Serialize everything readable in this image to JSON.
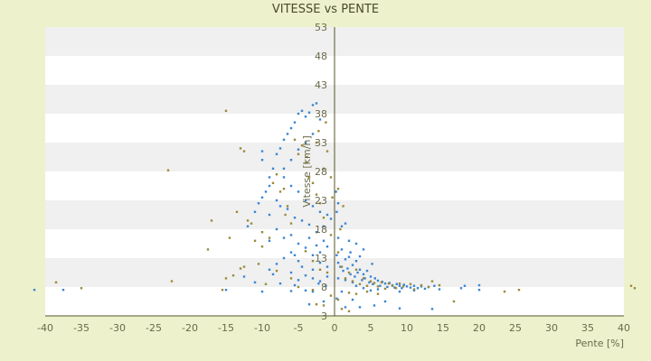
{
  "chart_data": {
    "type": "scatter",
    "title": "VITESSE vs PENTE",
    "xlabel": "Pente [%]",
    "ylabel": "Vitesse [km/h]",
    "xlim": [
      -40,
      40
    ],
    "ylim": [
      3,
      53
    ],
    "x_ticks": [
      -40,
      -35,
      -30,
      -25,
      -20,
      -15,
      -10,
      -5,
      0,
      5,
      10,
      15,
      20,
      25,
      30,
      35,
      40
    ],
    "y_ticks": [
      3,
      8,
      13,
      18,
      23,
      28,
      33,
      38,
      43,
      48,
      53
    ],
    "colors": {
      "background": "#eef2cc",
      "band_light": "#ffffff",
      "band_dark": "#f0f0f0",
      "series_blue": "#3a86d4",
      "series_olive": "#9a8a3a",
      "axis": "#55552a"
    },
    "series": [
      {
        "color": "#3a86d4",
        "points": [
          [
            -41.5,
            7.5
          ],
          [
            -37.5,
            7.5
          ],
          [
            -15,
            7.5
          ],
          [
            -11,
            8.8
          ],
          [
            -10,
            7.2
          ],
          [
            -6,
            7.3
          ],
          [
            -4,
            7.4
          ],
          [
            -3,
            7.2
          ],
          [
            -5,
            9.2
          ],
          [
            -12,
            18.5
          ],
          [
            -11,
            21
          ],
          [
            -10.5,
            22.5
          ],
          [
            -10,
            23.5
          ],
          [
            -9.5,
            24.5
          ],
          [
            -9,
            25.5
          ],
          [
            -9,
            27
          ],
          [
            -8.5,
            28.5
          ],
          [
            -10,
            30
          ],
          [
            -10,
            31.5
          ],
          [
            -8,
            31
          ],
          [
            -7.5,
            32
          ],
          [
            -7,
            33.5
          ],
          [
            -6.5,
            34.5
          ],
          [
            -6,
            35.5
          ],
          [
            -5.5,
            36.5
          ],
          [
            -5,
            38
          ],
          [
            -4.5,
            38.5
          ],
          [
            -4,
            37.5
          ],
          [
            -3.5,
            38.2
          ],
          [
            -3,
            39.5
          ],
          [
            -2.5,
            39.8
          ],
          [
            -2,
            37
          ],
          [
            -3,
            34.5
          ],
          [
            -4,
            33
          ],
          [
            -5,
            31.8
          ],
          [
            -6,
            30
          ],
          [
            -7,
            28.5
          ],
          [
            -7,
            27
          ],
          [
            -6,
            25.5
          ],
          [
            -5,
            24.5
          ],
          [
            -4,
            23
          ],
          [
            -3,
            22
          ],
          [
            -2,
            21
          ],
          [
            -1,
            20.5
          ],
          [
            -0.5,
            19.8
          ],
          [
            -1.5,
            18.5
          ],
          [
            -2.5,
            17.5
          ],
          [
            -3.5,
            18.8
          ],
          [
            -4.5,
            19.5
          ],
          [
            -5.5,
            20
          ],
          [
            -6.5,
            21.5
          ],
          [
            -7.5,
            22
          ],
          [
            -8,
            23
          ],
          [
            -9,
            20.5
          ],
          [
            -8,
            18
          ],
          [
            -7,
            16.5
          ],
          [
            -6,
            17
          ],
          [
            -5,
            15.5
          ],
          [
            -4,
            14.8
          ],
          [
            -3,
            13.5
          ],
          [
            -2,
            12.2
          ],
          [
            -1,
            11.5
          ],
          [
            -1.5,
            16
          ],
          [
            -2.5,
            15.2
          ],
          [
            -3.5,
            16.5
          ],
          [
            -6,
            14
          ],
          [
            -7,
            13
          ],
          [
            -8,
            12
          ],
          [
            -9,
            11
          ],
          [
            -6,
            10.5
          ],
          [
            -4,
            10
          ],
          [
            -3,
            9.5
          ],
          [
            -2,
            9
          ],
          [
            -1,
            9.8
          ],
          [
            -12.5,
            9.8
          ],
          [
            -7.5,
            8.6
          ],
          [
            -5.5,
            8.3
          ],
          [
            -8.5,
            10.2
          ],
          [
            -2.2,
            8.6
          ],
          [
            -1.2,
            8.2
          ],
          [
            0.3,
            13.5
          ],
          [
            0.5,
            12.2
          ],
          [
            0.8,
            11.5
          ],
          [
            1,
            14.5
          ],
          [
            1.2,
            10.8
          ],
          [
            1.5,
            12.8
          ],
          [
            1.8,
            11.2
          ],
          [
            2,
            13.2
          ],
          [
            2.2,
            10.2
          ],
          [
            2.5,
            11.8
          ],
          [
            2.8,
            9.8
          ],
          [
            3,
            12.5
          ],
          [
            3.2,
            10.5
          ],
          [
            3.5,
            11
          ],
          [
            3.8,
            9.2
          ],
          [
            4,
            10.2
          ],
          [
            4.2,
            9.5
          ],
          [
            4.5,
            10.8
          ],
          [
            4.8,
            8.8
          ],
          [
            5,
            9.8
          ],
          [
            5.3,
            8.5
          ],
          [
            5.6,
            9.5
          ],
          [
            6,
            9.1
          ],
          [
            6.3,
            8.2
          ],
          [
            6.6,
            8.9
          ],
          [
            7,
            8.6
          ],
          [
            7.3,
            8
          ],
          [
            7.6,
            8.7
          ],
          [
            8,
            8.3
          ],
          [
            8.3,
            7.9
          ],
          [
            8.6,
            8.5
          ],
          [
            9,
            8.2
          ],
          [
            9.3,
            7.8
          ],
          [
            9.6,
            8.4
          ],
          [
            10,
            8.1
          ],
          [
            10.5,
            7.9
          ],
          [
            11,
            8.2
          ],
          [
            11.5,
            7.8
          ],
          [
            12,
            8.1
          ],
          [
            12.5,
            7.7
          ],
          [
            13,
            8
          ],
          [
            13.8,
            8.2
          ],
          [
            14.5,
            7.6
          ],
          [
            17.5,
            7.8
          ],
          [
            18,
            8.2
          ],
          [
            20,
            7.5
          ],
          [
            20,
            8.3
          ],
          [
            0.5,
            16.5
          ],
          [
            1,
            18.5
          ],
          [
            1.5,
            19
          ],
          [
            0.3,
            21
          ],
          [
            0.5,
            22.5
          ],
          [
            0.2,
            24.5
          ],
          [
            2,
            16
          ],
          [
            3,
            15.5
          ],
          [
            4,
            14.5
          ],
          [
            0.5,
            9.5
          ],
          [
            1.5,
            9.2
          ],
          [
            2.5,
            8.8
          ],
          [
            3,
            8.2
          ],
          [
            4,
            7.8
          ],
          [
            5,
            7.4
          ],
          [
            6,
            7.6
          ],
          [
            9,
            7.2
          ],
          [
            11,
            7.4
          ],
          [
            1,
            7.2
          ],
          [
            0.3,
            6
          ],
          [
            -3.5,
            5
          ],
          [
            -1.5,
            5.5
          ],
          [
            1.5,
            4.5
          ],
          [
            2.5,
            5.8
          ],
          [
            3.5,
            4.5
          ],
          [
            5.5,
            4.8
          ],
          [
            7,
            5.5
          ],
          [
            9,
            4.3
          ],
          [
            13.5,
            4.2
          ],
          [
            -4.5,
            11.5
          ],
          [
            -5,
            12.5
          ],
          [
            -5.5,
            13.5
          ],
          [
            -2,
            14
          ],
          [
            -1,
            15
          ],
          [
            -3,
            11
          ],
          [
            2.2,
            14
          ],
          [
            3.5,
            13.3
          ],
          [
            5.2,
            12
          ],
          [
            -9,
            16
          ]
        ]
      },
      {
        "color": "#9a8a3a",
        "points": [
          [
            41.5,
            7.8
          ],
          [
            41,
            8.2
          ],
          [
            -38.5,
            8.8
          ],
          [
            -35,
            7.8
          ],
          [
            -23,
            28.2
          ],
          [
            -22.5,
            9
          ],
          [
            -17.5,
            14.5
          ],
          [
            -17,
            19.5
          ],
          [
            -15,
            38.5
          ],
          [
            -15.5,
            7.5
          ],
          [
            -15,
            9.5
          ],
          [
            -14.5,
            16.5
          ],
          [
            -13.5,
            21
          ],
          [
            -13,
            32
          ],
          [
            -12.5,
            31.5
          ],
          [
            -12,
            19.5
          ],
          [
            -11.5,
            19
          ],
          [
            -11,
            16
          ],
          [
            -10,
            15
          ],
          [
            -10,
            17.5
          ],
          [
            -10.5,
            12
          ],
          [
            -9,
            16.5
          ],
          [
            -8.5,
            26
          ],
          [
            -8,
            27.5
          ],
          [
            -7.5,
            24.5
          ],
          [
            -7,
            25
          ],
          [
            -6.5,
            22
          ],
          [
            -6,
            19
          ],
          [
            -5.5,
            33.5
          ],
          [
            -5,
            31
          ],
          [
            -4.5,
            32.5
          ],
          [
            -4,
            29.5
          ],
          [
            -3.5,
            27
          ],
          [
            -3,
            26
          ],
          [
            -2.5,
            24
          ],
          [
            -2,
            22.5
          ],
          [
            -1.5,
            28.5
          ],
          [
            -1,
            31.5
          ],
          [
            -0.5,
            27
          ],
          [
            -2.5,
            33
          ],
          [
            -1.5,
            20
          ],
          [
            -0.5,
            17
          ],
          [
            -4,
            14.2
          ],
          [
            -3,
            12.5
          ],
          [
            -2,
            11
          ],
          [
            -1,
            10.5
          ],
          [
            -6,
            9.5
          ],
          [
            -8,
            10.8
          ],
          [
            -13,
            11.2
          ],
          [
            -14,
            10
          ],
          [
            -12.5,
            11.5
          ],
          [
            -5,
            8
          ],
          [
            -3,
            7.5
          ],
          [
            -2.5,
            5
          ],
          [
            -1.5,
            4.8
          ],
          [
            -0.5,
            6.5
          ],
          [
            0.5,
            14
          ],
          [
            1,
            11.5
          ],
          [
            1.5,
            9.5
          ],
          [
            2,
            10.5
          ],
          [
            2.5,
            9
          ],
          [
            3,
            11
          ],
          [
            3.5,
            8.5
          ],
          [
            4,
            9.5
          ],
          [
            4.5,
            8.2
          ],
          [
            5,
            9
          ],
          [
            5.5,
            8.7
          ],
          [
            6,
            8.1
          ],
          [
            6.5,
            8.8
          ],
          [
            7,
            7.7
          ],
          [
            7.5,
            8.6
          ],
          [
            8,
            8.2
          ],
          [
            8.5,
            7.8
          ],
          [
            9,
            8.6
          ],
          [
            9.5,
            8.1
          ],
          [
            10.5,
            8.5
          ],
          [
            11,
            7.6
          ],
          [
            12,
            8.3
          ],
          [
            13,
            8
          ],
          [
            13.5,
            9
          ],
          [
            14.5,
            8.3
          ],
          [
            16.5,
            5.5
          ],
          [
            23.5,
            7.2
          ],
          [
            25.5,
            7.5
          ],
          [
            0.8,
            18
          ],
          [
            1.2,
            22
          ],
          [
            0.5,
            25
          ],
          [
            -0.3,
            23.5
          ],
          [
            2,
            7
          ],
          [
            3,
            6.8
          ],
          [
            4.5,
            7.2
          ],
          [
            6,
            6.8
          ],
          [
            0.5,
            5.8
          ],
          [
            1,
            4.2
          ],
          [
            2,
            3.8
          ],
          [
            -1.2,
            36.5
          ],
          [
            -2.2,
            35
          ],
          [
            -3.8,
            30.5
          ],
          [
            -6.8,
            20.5
          ],
          [
            -9.5,
            8.5
          ]
        ]
      }
    ]
  }
}
